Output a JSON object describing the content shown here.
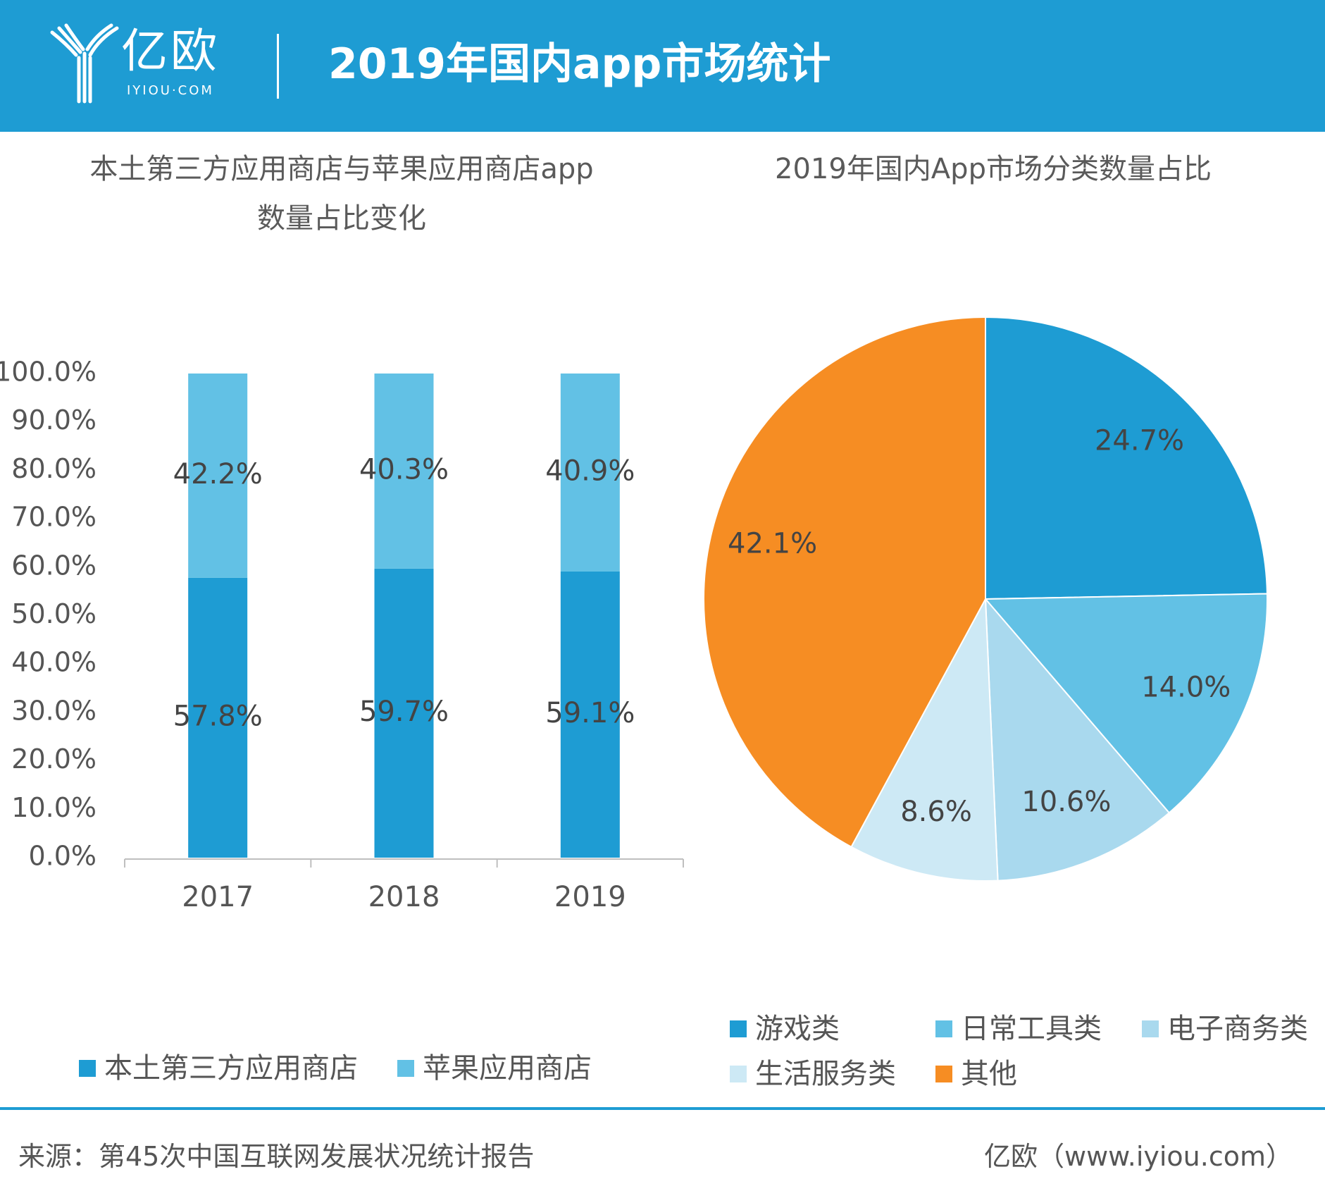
{
  "header": {
    "logo_text": "亿欧",
    "logo_sub": "IYIOU·COM",
    "title": "2019年国内app市场统计"
  },
  "colors": {
    "brand_blue": "#1e9cd3",
    "light_blue": "#62c1e5",
    "pale_blue": "#a9d9ee",
    "paler_blue": "#cde9f5",
    "orange": "#f68d23"
  },
  "chart_data": [
    {
      "type": "bar",
      "stacked": true,
      "title_lines": [
        "本土第三方应用商店与苹果应用商店app",
        "数量占比变化"
      ],
      "categories": [
        "2017",
        "2018",
        "2019"
      ],
      "series": [
        {
          "name": "本土第三方应用商店",
          "values": [
            57.8,
            59.7,
            59.1
          ],
          "labels": [
            "57.8%",
            "59.7%",
            "59.1%"
          ],
          "color": "#1e9cd3"
        },
        {
          "name": "苹果应用商店",
          "values": [
            42.2,
            40.3,
            40.9
          ],
          "labels": [
            "42.2%",
            "40.3%",
            "40.9%"
          ],
          "color": "#62c1e5"
        }
      ],
      "ylim": [
        0,
        100
      ],
      "yticks": [
        "0.0%",
        "10.0%",
        "20.0%",
        "30.0%",
        "40.0%",
        "50.0%",
        "60.0%",
        "70.0%",
        "80.0%",
        "90.0%",
        "100.0%"
      ],
      "grid": false,
      "legend": "bottom"
    },
    {
      "type": "pie",
      "title": "2019年国内App市场分类数量占比",
      "slices": [
        {
          "name": "游戏类",
          "value": 24.7,
          "label": "24.7%",
          "color": "#1e9cd3"
        },
        {
          "name": "日常工具类",
          "value": 14.0,
          "label": "14.0%",
          "color": "#62c1e5"
        },
        {
          "name": "电子商务类",
          "value": 10.6,
          "label": "10.6%",
          "color": "#a9d9ee"
        },
        {
          "name": "生活服务类",
          "value": 8.6,
          "label": "8.6%",
          "color": "#cde9f5"
        },
        {
          "name": "其他",
          "value": 42.1,
          "label": "42.1%",
          "color": "#f68d23"
        }
      ],
      "legend": "bottom"
    }
  ],
  "footer": {
    "source": "来源：第45次中国互联网发展状况统计报告",
    "brand": "亿欧（www.iyiou.com）"
  }
}
